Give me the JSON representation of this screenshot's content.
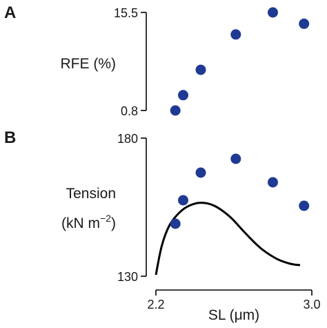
{
  "chart_data": [
    {
      "type": "scatter",
      "panel_label": "A",
      "ylabel": "RFE (%)",
      "yticks": [
        "15.5",
        "0.8"
      ],
      "ylim": [
        0.8,
        15.5
      ],
      "xlim": [
        2.2,
        3.0
      ],
      "series": [
        {
          "points": [
            {
              "x": 2.3,
              "y": 0.8
            },
            {
              "x": 2.34,
              "y": 3.1
            },
            {
              "x": 2.43,
              "y": 6.9
            },
            {
              "x": 2.61,
              "y": 12.2
            },
            {
              "x": 2.8,
              "y": 15.5
            },
            {
              "x": 2.96,
              "y": 13.8
            }
          ]
        }
      ]
    },
    {
      "type": "scatter",
      "panel_label": "B",
      "ylabel_line1": "Tension",
      "ylabel_line2_main": "(kN m",
      "ylabel_line2_sup": "−2",
      "ylabel_line2_end": ")",
      "yticks": [
        "180",
        "130"
      ],
      "ylim": [
        130,
        180
      ],
      "xlim": [
        2.2,
        3.0
      ],
      "xticks": [
        "2.2",
        "3.0"
      ],
      "xlabel": "SL (μm)",
      "series": [
        {
          "points": [
            {
              "x": 2.3,
              "y": 149.0
            },
            {
              "x": 2.34,
              "y": 157.5
            },
            {
              "x": 2.43,
              "y": 167.5
            },
            {
              "x": 2.61,
              "y": 172.5
            },
            {
              "x": 2.8,
              "y": 164.0
            },
            {
              "x": 2.96,
              "y": 155.5
            }
          ]
        }
      ],
      "curve": [
        {
          "x": 2.2,
          "y": 130.5
        },
        {
          "x": 2.23,
          "y": 141.0
        },
        {
          "x": 2.27,
          "y": 148.5
        },
        {
          "x": 2.32,
          "y": 153.0
        },
        {
          "x": 2.37,
          "y": 155.5
        },
        {
          "x": 2.43,
          "y": 156.6
        },
        {
          "x": 2.5,
          "y": 155.5
        },
        {
          "x": 2.58,
          "y": 151.5
        },
        {
          "x": 2.66,
          "y": 145.5
        },
        {
          "x": 2.74,
          "y": 140.0
        },
        {
          "x": 2.82,
          "y": 136.3
        },
        {
          "x": 2.89,
          "y": 134.5
        },
        {
          "x": 2.94,
          "y": 134.0
        }
      ]
    }
  ]
}
